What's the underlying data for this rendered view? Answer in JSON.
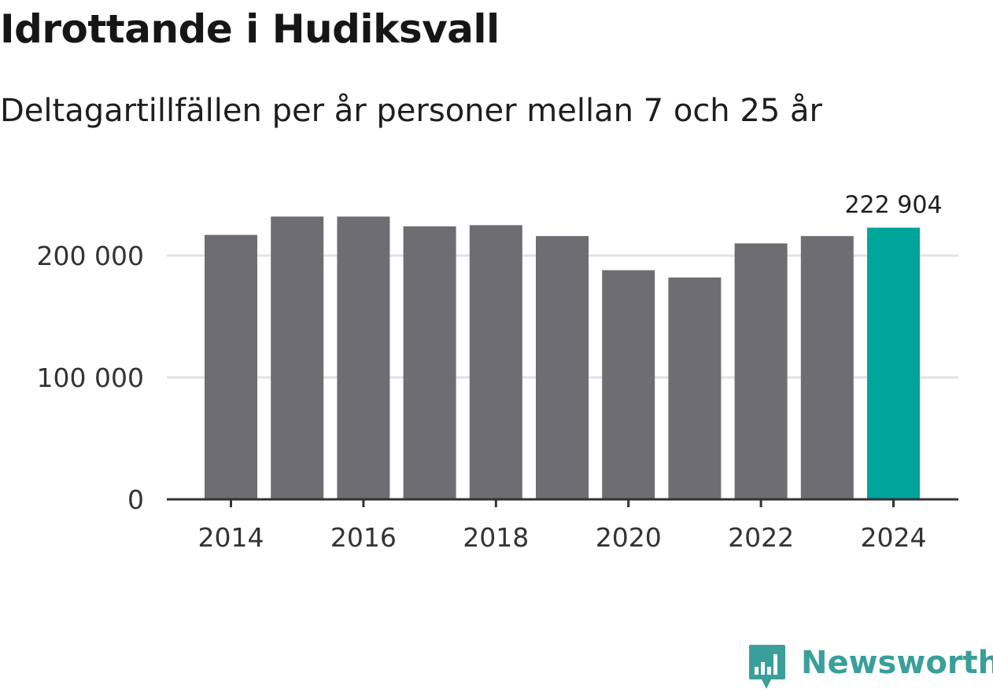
{
  "header": {
    "title": "Idrottande i Hudiksvall",
    "subtitle": "Deltagartillfällen per år personer mellan 7 och 25 år"
  },
  "colors": {
    "bar_default": "#6e6d72",
    "bar_highlight": "#00a499",
    "grid": "#e2e2e2",
    "axis": "#333333",
    "brand": "#3a9f9a"
  },
  "chart_data": {
    "type": "bar",
    "title": "Idrottande i Hudiksvall",
    "subtitle": "Deltagartillfällen per år personer mellan 7 och 25 år",
    "xlabel": "",
    "ylabel": "",
    "categories": [
      2014,
      2015,
      2016,
      2017,
      2018,
      2019,
      2020,
      2021,
      2022,
      2023,
      2024
    ],
    "values": [
      217000,
      232000,
      232000,
      224000,
      225000,
      216000,
      188000,
      182000,
      210000,
      216000,
      222904
    ],
    "highlight_index": 10,
    "highlight_label": "222 904",
    "ylim": [
      0,
      240000
    ],
    "yticks": [
      0,
      100000,
      200000
    ],
    "ytick_labels": [
      "0",
      "100 000",
      "200 000"
    ],
    "xticks": [
      2014,
      2016,
      2018,
      2020,
      2022,
      2024
    ],
    "xtick_labels": [
      "2014",
      "2016",
      "2018",
      "2020",
      "2022",
      "2024"
    ],
    "grid": true,
    "legend": "none"
  },
  "branding": {
    "logo_text": "Newsworthy",
    "logo_icon": "newsworthy-bar-chart-icon"
  }
}
